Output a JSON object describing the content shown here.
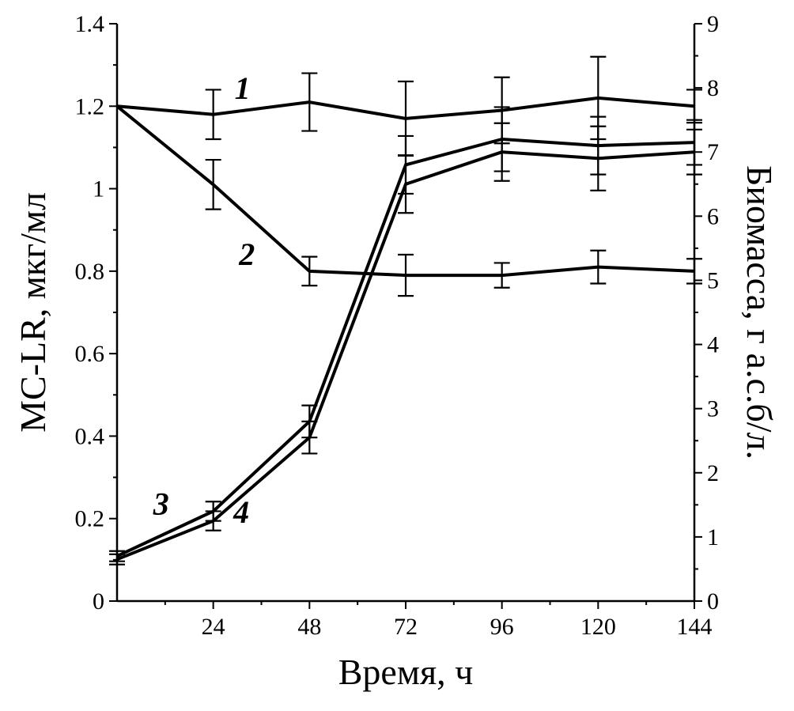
{
  "chart_data": {
    "type": "line",
    "title": "",
    "grid": false,
    "line_color": "#000000",
    "x_axis": {
      "label": "Время, ч",
      "min": 0,
      "max": 144,
      "major_ticks": [
        24,
        48,
        72,
        96,
        120,
        144
      ],
      "tick_labels": [
        "24",
        "48",
        "72",
        "96",
        "120",
        "144"
      ],
      "minor_step": 12
    },
    "left_axis": {
      "label": "МС-LR, мкг/мл",
      "min": 0,
      "max": 1.4,
      "major_ticks": [
        0,
        0.2,
        0.4,
        0.6,
        0.8,
        1,
        1.2,
        1.4
      ],
      "tick_labels": [
        "0",
        "0.2",
        "0.4",
        "0.6",
        "0.8",
        "1",
        "1.2",
        "1.4"
      ],
      "minor_step": 0.1
    },
    "right_axis": {
      "label": "Биомасса, г а.с.б/л.",
      "min": 0,
      "max": 9,
      "major_ticks": [
        0,
        1,
        2,
        3,
        4,
        5,
        6,
        7,
        8,
        9
      ],
      "tick_labels": [
        "0",
        "1",
        "2",
        "3",
        "4",
        "5",
        "6",
        "7",
        "8",
        "9"
      ],
      "minor_step": 0.5
    },
    "series": [
      {
        "name": "1",
        "axis": "left",
        "x": [
          0,
          24,
          48,
          72,
          96,
          120,
          144
        ],
        "y": [
          1.2,
          1.18,
          1.21,
          1.17,
          1.19,
          1.22,
          1.2
        ],
        "err": [
          0,
          0.06,
          0.07,
          0.09,
          0.08,
          0.1,
          0.04
        ]
      },
      {
        "name": "2",
        "axis": "left",
        "x": [
          0,
          24,
          48,
          72,
          96,
          120,
          144
        ],
        "y": [
          1.2,
          1.01,
          0.8,
          0.79,
          0.79,
          0.81,
          0.8
        ],
        "err": [
          0,
          0.06,
          0.035,
          0.05,
          0.03,
          0.04,
          0.03
        ]
      },
      {
        "name": "3",
        "axis": "right",
        "x": [
          0,
          24,
          48,
          72,
          96,
          120,
          144
        ],
        "y": [
          0.7,
          1.4,
          2.8,
          6.8,
          7.2,
          7.1,
          7.15
        ],
        "err": [
          0.08,
          0.15,
          0.25,
          0.45,
          0.5,
          0.45,
          0.35
        ]
      },
      {
        "name": "4",
        "axis": "right",
        "x": [
          0,
          24,
          48,
          72,
          96,
          120,
          144
        ],
        "y": [
          0.65,
          1.25,
          2.55,
          6.5,
          7.0,
          6.9,
          7.0
        ],
        "err": [
          0.08,
          0.15,
          0.25,
          0.45,
          0.45,
          0.5,
          0.35
        ]
      }
    ],
    "annotations": [
      {
        "text": "1",
        "axis": "left",
        "x": 31.3,
        "y": 1.218
      },
      {
        "text": "2",
        "axis": "left",
        "x": 32.4,
        "y": 0.815
      },
      {
        "text": "3",
        "axis": "left",
        "x": 11.0,
        "y": 0.21
      },
      {
        "text": "4",
        "axis": "left",
        "x": 31.0,
        "y": 0.19
      }
    ]
  }
}
